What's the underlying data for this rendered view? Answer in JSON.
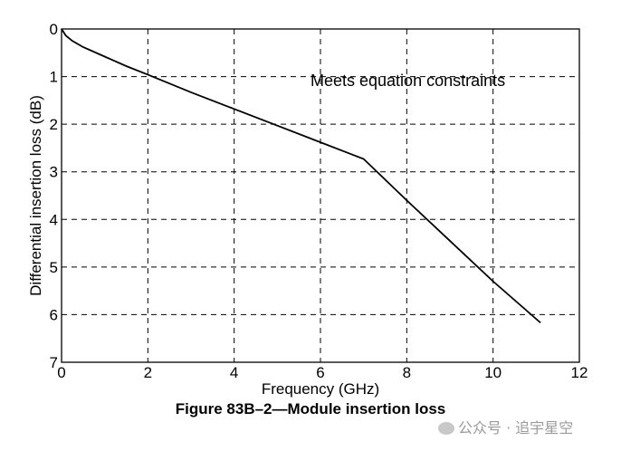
{
  "chart_data": {
    "type": "line",
    "xlabel": "Frequency (GHz)",
    "ylabel": "Differential insertion loss (dB)",
    "xlim": [
      0,
      12
    ],
    "ylim": [
      0,
      7
    ],
    "y_inverted": true,
    "x_ticks": [
      0,
      2,
      4,
      6,
      8,
      10,
      12
    ],
    "y_ticks": [
      0,
      1,
      2,
      3,
      4,
      5,
      6,
      7
    ],
    "grid": true,
    "grid_style": "dashed",
    "annotation": "Meets equation constraints",
    "series": [
      {
        "x": [
          0,
          0.1,
          0.25,
          0.5,
          1,
          1.5,
          2,
          3,
          4,
          5,
          6,
          7,
          8,
          9,
          10,
          11.1
        ],
        "y": [
          0,
          0.14,
          0.25,
          0.38,
          0.58,
          0.78,
          0.96,
          1.33,
          1.68,
          2.03,
          2.38,
          2.73,
          3.6,
          4.45,
          5.3,
          6.17
        ]
      }
    ]
  },
  "caption": "Figure 83B–2—Module insertion loss",
  "watermark": {
    "text": "公众号 · 追宇星空",
    "icon": "wechat-icon"
  }
}
